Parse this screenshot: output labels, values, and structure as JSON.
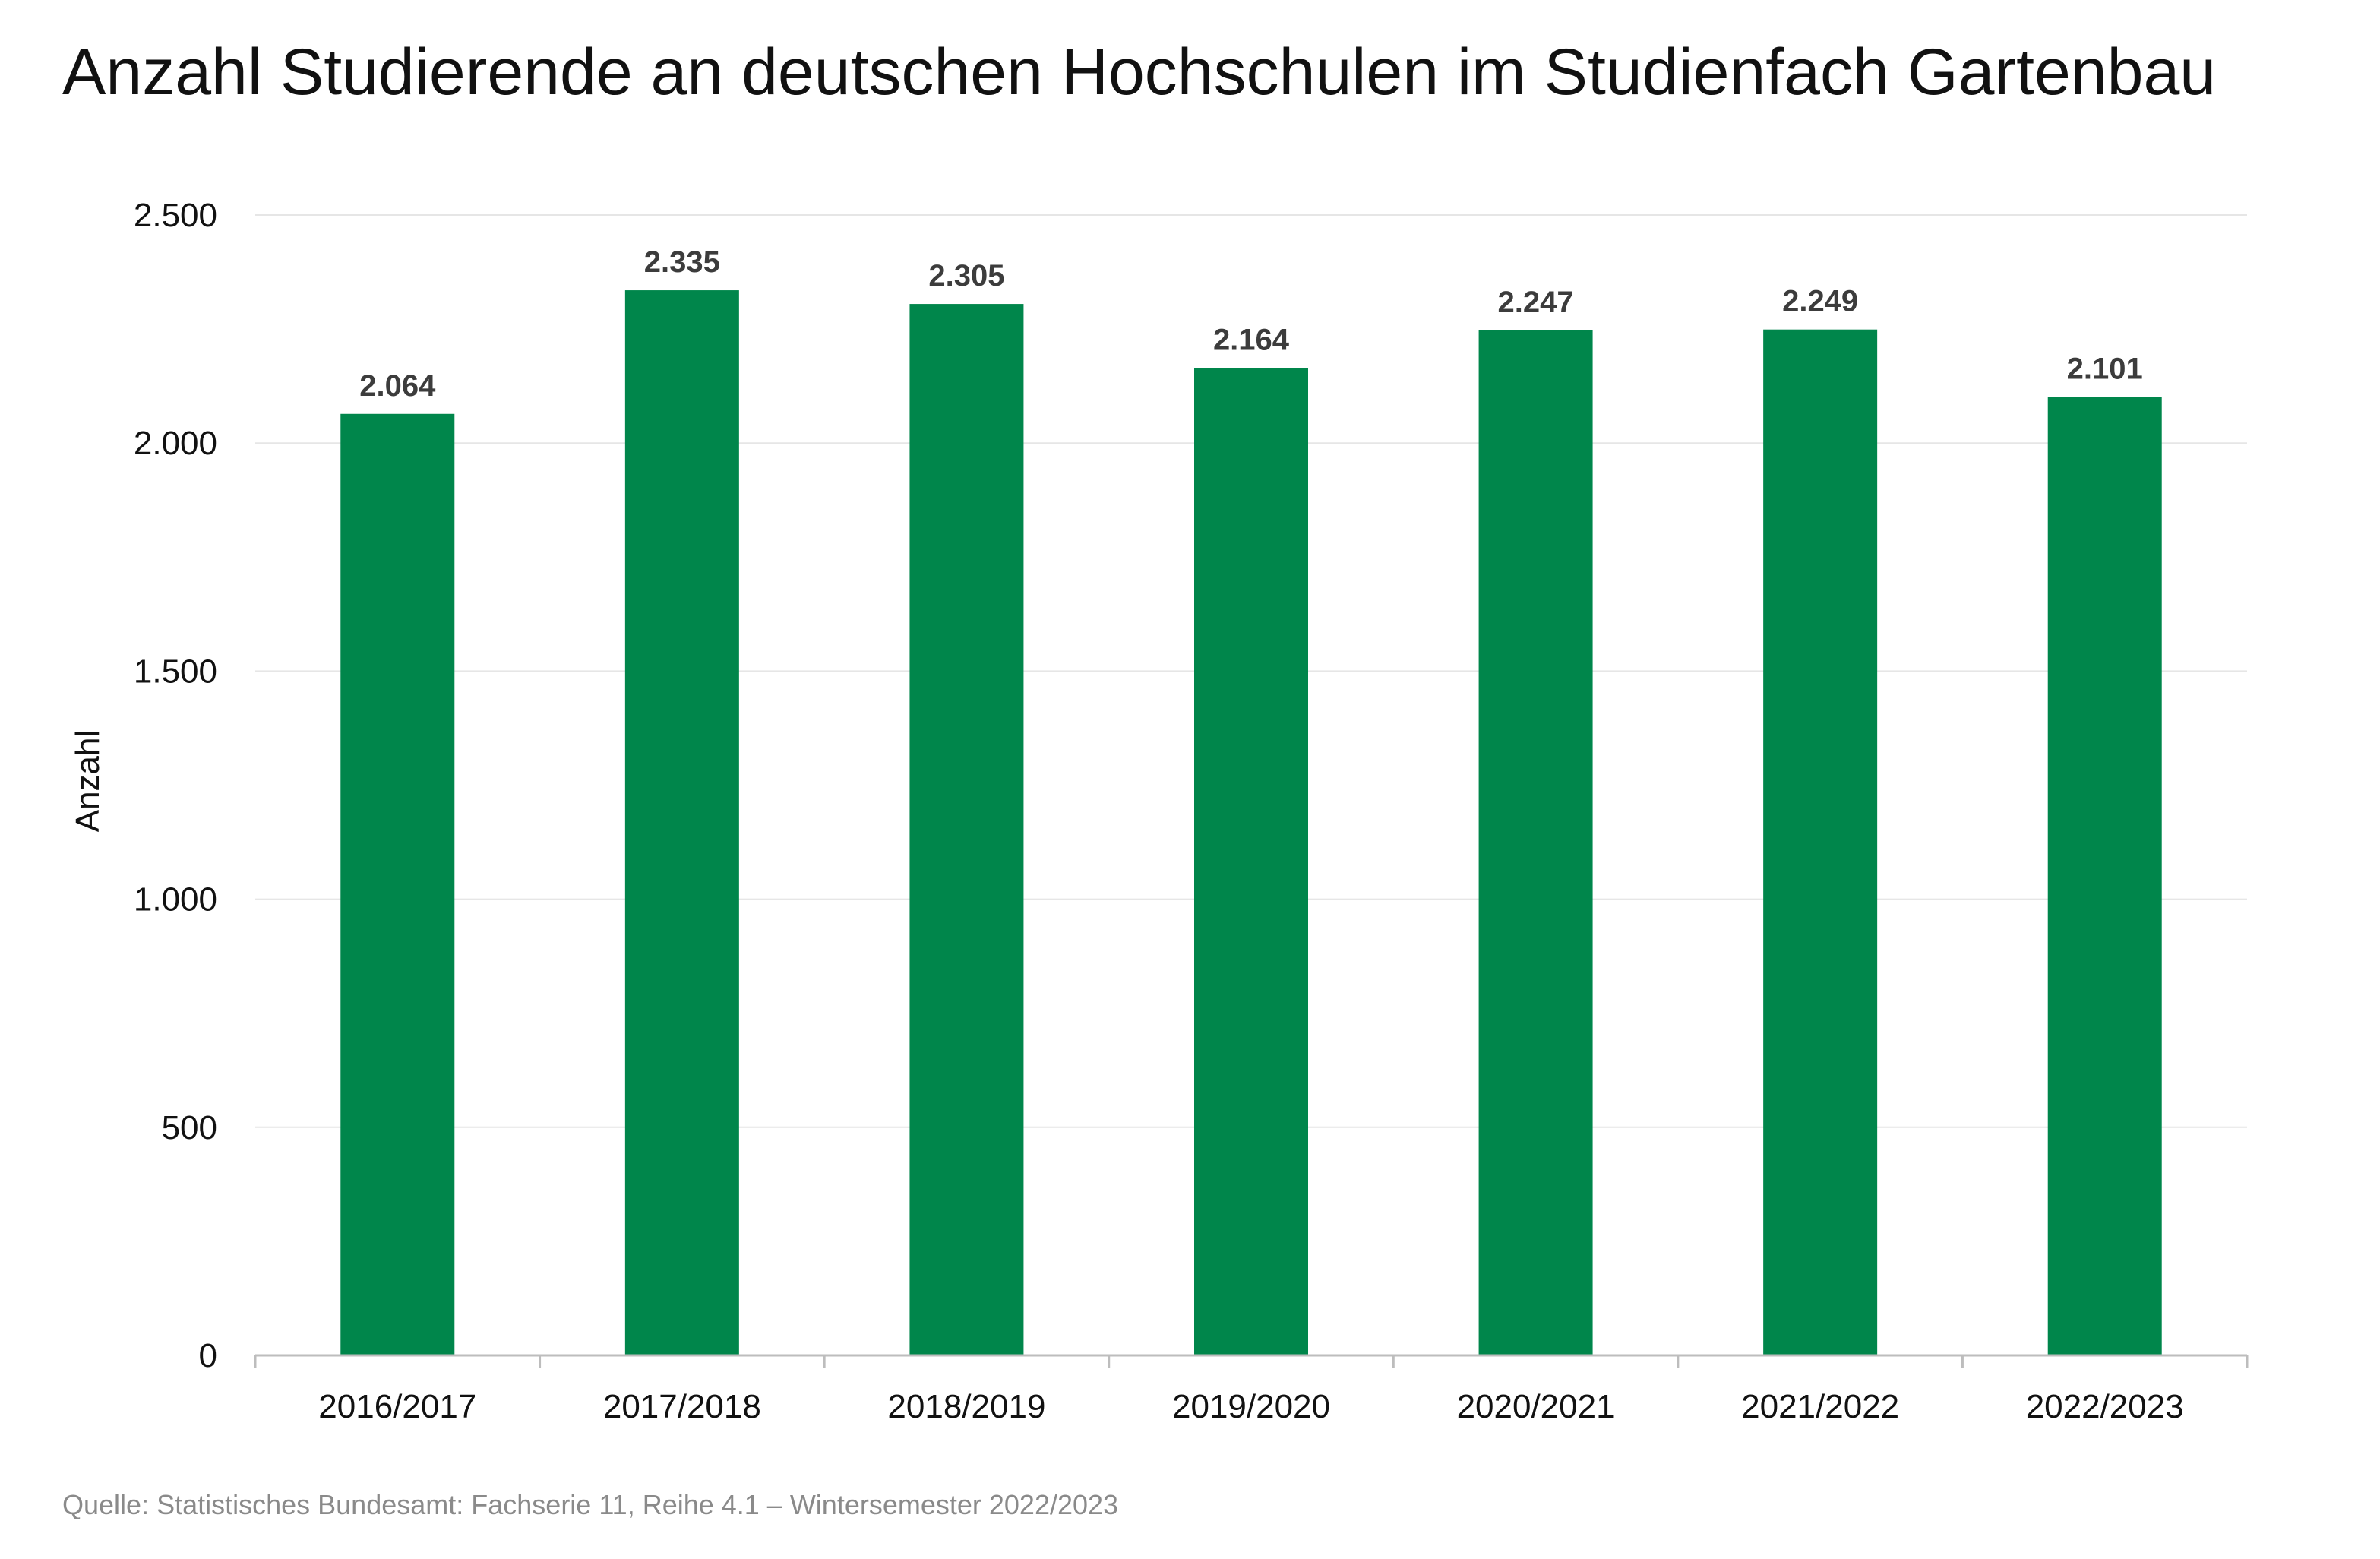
{
  "title": "Anzahl Studierende an deutschen Hochschulen im Studienfach Gartenbau",
  "source": "Quelle: Statistisches Bundesamt: Fachserie 11, Reihe 4.1 – Wintersemester 2022/2023",
  "colors": {
    "bar": "#00864b",
    "grid": "#e6e6e6",
    "axis": "#bdbdbd"
  },
  "chart_data": {
    "type": "bar",
    "title": "Anzahl Studierende an deutschen Hochschulen im Studienfach Gartenbau",
    "ylabel": "Anzahl",
    "xlabel": "",
    "categories": [
      "2016/2017",
      "2017/2018",
      "2018/2019",
      "2019/2020",
      "2020/2021",
      "2021/2022",
      "2022/2023"
    ],
    "values": [
      2064,
      2335,
      2305,
      2164,
      2247,
      2249,
      2101
    ],
    "value_labels": [
      "2.064",
      "2.335",
      "2.305",
      "2.164",
      "2.247",
      "2.249",
      "2.101"
    ],
    "ylim": [
      0,
      2500
    ],
    "yticks": [
      0,
      500,
      1000,
      1500,
      2000,
      2500
    ],
    "ytick_labels": [
      "0",
      "500",
      "1.000",
      "1.500",
      "2.000",
      "2.500"
    ],
    "grid": true,
    "legend": false
  }
}
